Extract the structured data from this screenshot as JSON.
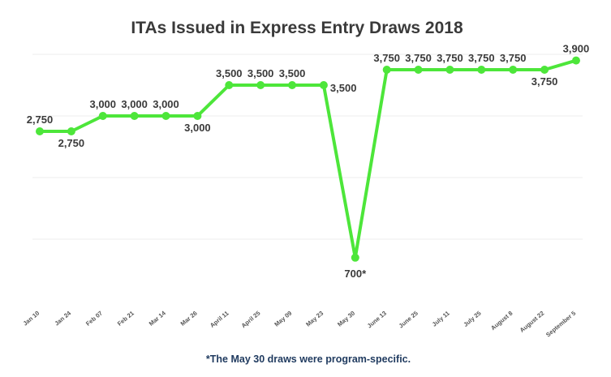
{
  "colors": {
    "line": "#4de63a",
    "text": "#3a3a3a",
    "footnote": "#1f3a5f",
    "grid": "#ececec"
  },
  "footnote": "*The May 30 draws were program-specific.",
  "chart_data": {
    "type": "line",
    "title": "ITAs Issued in Express Entry Draws 2018",
    "xlabel": "",
    "ylabel": "",
    "ylim": [
      0,
      4000
    ],
    "grid": true,
    "categories": [
      "Jan 10",
      "Jan 24",
      "Feb 07",
      "Feb 21",
      "Mar 14",
      "Mar 26",
      "April 11",
      "April 25",
      "May 09",
      "May 23",
      "May 30",
      "June 13",
      "June 25",
      "July 11",
      "July 25",
      "August 8",
      "August 22",
      "September 5"
    ],
    "series": [
      {
        "values": [
          2750,
          2750,
          3000,
          3000,
          3000,
          3000,
          3500,
          3500,
          3500,
          3500,
          700,
          3750,
          3750,
          3750,
          3750,
          3750,
          3750,
          3900
        ]
      }
    ],
    "data_labels": [
      "2,750",
      "2,750",
      "3,000",
      "3,000",
      "3,000",
      "3,000",
      "3,500",
      "3,500",
      "3,500",
      "3,500",
      "700*",
      "3,750",
      "3,750",
      "3,750",
      "3,750",
      "3,750",
      "3,750",
      "3,900"
    ]
  }
}
